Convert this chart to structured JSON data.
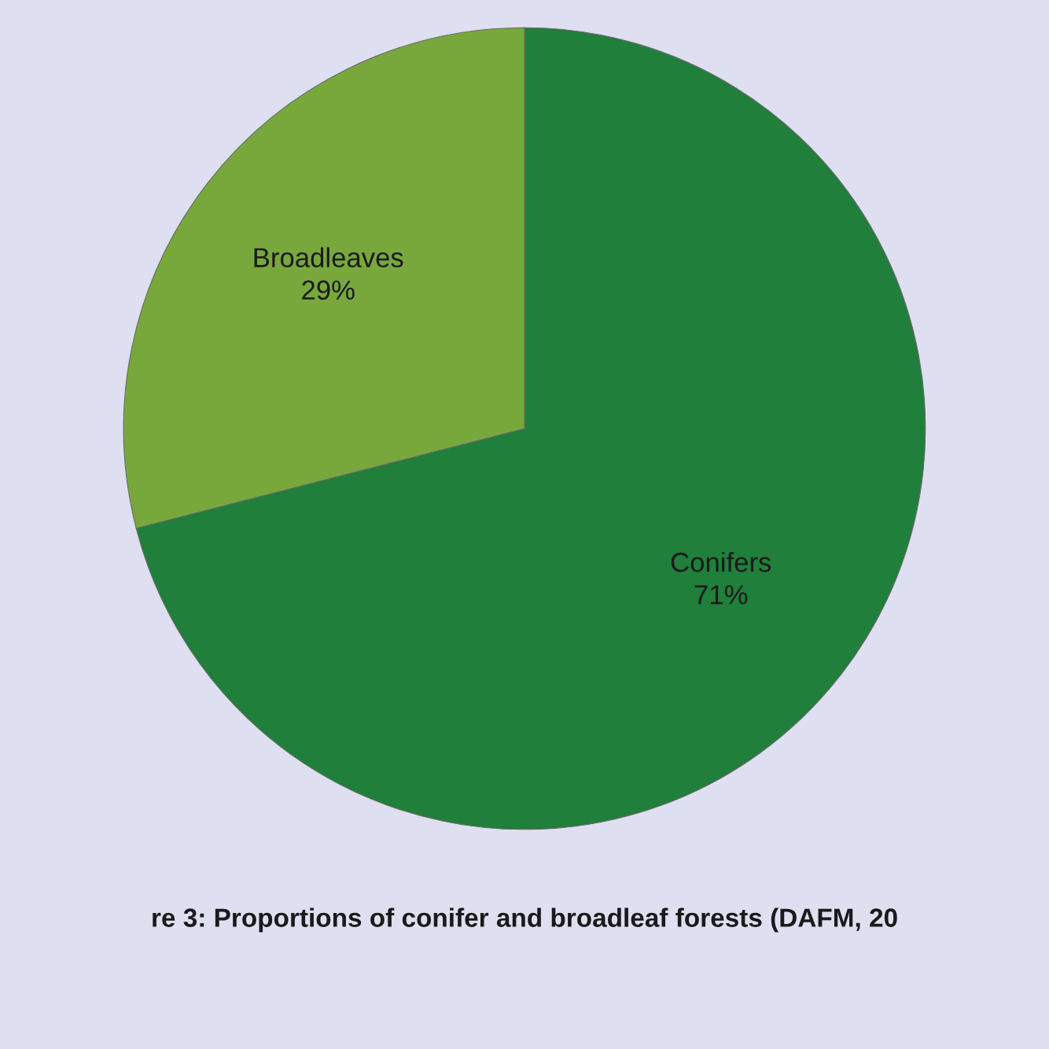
{
  "chart_data": {
    "type": "pie",
    "categories": [
      "Conifers",
      "Broadleaves"
    ],
    "values": [
      71,
      29
    ],
    "colors": [
      "#1f7f3b",
      "#78a83c"
    ],
    "value_labels": [
      "71%",
      "29%"
    ],
    "annotations": [
      "re 3: Proportions of conifer and broadleaf forests (DAFM, 20"
    ]
  }
}
